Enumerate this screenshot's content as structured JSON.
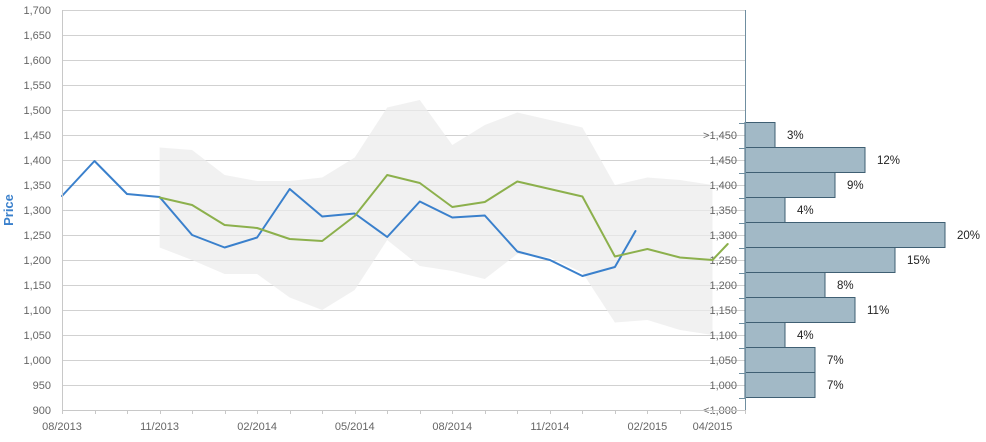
{
  "chart_data": {
    "type": "line",
    "ylabel": "Price",
    "ylim": [
      900,
      1700
    ],
    "y_ticks": [
      "900",
      "950",
      "1,000",
      "1,050",
      "1,100",
      "1,150",
      "1,200",
      "1,250",
      "1,300",
      "1,350",
      "1,400",
      "1,450",
      "1,500",
      "1,550",
      "1,600",
      "1,650",
      "1,700"
    ],
    "x_range": [
      "2013-08",
      "2015-05"
    ],
    "x_tick_labels": [
      "08/2013",
      "11/2013",
      "02/2014",
      "05/2014",
      "08/2014",
      "11/2014",
      "02/2015",
      "04/2015"
    ],
    "grid": "horizontal",
    "series": [
      {
        "color": "#3a80cc",
        "points": [
          [
            "2013-08",
            1328
          ],
          [
            "2013-09",
            1398
          ],
          [
            "2013-10",
            1332
          ],
          [
            "2013-11",
            1326
          ],
          [
            "2013-12",
            1250
          ],
          [
            "2014-01",
            1225
          ],
          [
            "2014-02",
            1245
          ],
          [
            "2014-03",
            1342
          ],
          [
            "2014-04",
            1287
          ],
          [
            "2014-05",
            1293
          ],
          [
            "2014-06",
            1246
          ],
          [
            "2014-07",
            1317
          ],
          [
            "2014-08",
            1285
          ],
          [
            "2014-09",
            1289
          ],
          [
            "2014-10",
            1217
          ],
          [
            "2014-11",
            1200
          ],
          [
            "2014-12",
            1168
          ],
          [
            "2015-01",
            1186
          ],
          [
            "2015-01-20",
            1258
          ]
        ]
      },
      {
        "color": "#8cb04c",
        "points": [
          [
            "2013-11",
            1325
          ],
          [
            "2013-12",
            1310
          ],
          [
            "2014-01",
            1270
          ],
          [
            "2014-02",
            1264
          ],
          [
            "2014-03",
            1242
          ],
          [
            "2014-04",
            1238
          ],
          [
            "2014-05",
            1288
          ],
          [
            "2014-06",
            1370
          ],
          [
            "2014-07",
            1354
          ],
          [
            "2014-08",
            1306
          ],
          [
            "2014-09",
            1316
          ],
          [
            "2014-10",
            1357
          ],
          [
            "2014-11",
            1342
          ],
          [
            "2014-12",
            1327
          ],
          [
            "2015-01",
            1207
          ],
          [
            "2015-02",
            1222
          ],
          [
            "2015-03",
            1205
          ],
          [
            "2015-04",
            1200
          ],
          [
            "2015-04-15",
            1232
          ]
        ]
      }
    ],
    "band": {
      "color": "#efefef",
      "upper": [
        [
          "2013-11",
          1425
        ],
        [
          "2013-12",
          1420
        ],
        [
          "2014-01",
          1370
        ],
        [
          "2014-02",
          1358
        ],
        [
          "2014-03",
          1358
        ],
        [
          "2014-04",
          1365
        ],
        [
          "2014-05",
          1405
        ],
        [
          "2014-06",
          1505
        ],
        [
          "2014-07",
          1520
        ],
        [
          "2014-08",
          1430
        ],
        [
          "2014-09",
          1470
        ],
        [
          "2014-10",
          1495
        ],
        [
          "2014-11",
          1480
        ],
        [
          "2014-12",
          1465
        ],
        [
          "2015-01",
          1350
        ],
        [
          "2015-02",
          1365
        ],
        [
          "2015-03",
          1360
        ],
        [
          "2015-04",
          1350
        ]
      ],
      "lower": [
        [
          "2013-11",
          1225
        ],
        [
          "2013-12",
          1200
        ],
        [
          "2014-01",
          1172
        ],
        [
          "2014-02",
          1172
        ],
        [
          "2014-03",
          1125
        ],
        [
          "2014-04",
          1100
        ],
        [
          "2014-05",
          1140
        ],
        [
          "2014-06",
          1240
        ],
        [
          "2014-07",
          1188
        ],
        [
          "2014-08",
          1178
        ],
        [
          "2014-09",
          1162
        ],
        [
          "2014-10",
          1212
        ],
        [
          "2014-11",
          1205
        ],
        [
          "2014-12",
          1175
        ],
        [
          "2015-01",
          1075
        ],
        [
          "2015-02",
          1080
        ],
        [
          "2015-03",
          1060
        ],
        [
          "2015-04",
          1050
        ]
      ]
    },
    "distribution": {
      "bar_color": "#a2b9c6",
      "bins": [
        {
          "label": ">1,450",
          "percent": 3,
          "text": "3%"
        },
        {
          "label": "1,450",
          "percent": 12,
          "text": "12%"
        },
        {
          "label": "1,400",
          "percent": 9,
          "text": "9%"
        },
        {
          "label": "1,350",
          "percent": 4,
          "text": "4%"
        },
        {
          "label": "1,300",
          "percent": 20,
          "text": "20%"
        },
        {
          "label": "1,250",
          "percent": 15,
          "text": "15%"
        },
        {
          "label": "1,200",
          "percent": 8,
          "text": "8%"
        },
        {
          "label": "1,150",
          "percent": 11,
          "text": "11%"
        },
        {
          "label": "1,100",
          "percent": 4,
          "text": "4%"
        },
        {
          "label": "1,050",
          "percent": 7,
          "text": "7%"
        },
        {
          "label": "1,000",
          "percent": 7,
          "text": "7%"
        },
        {
          "label": "<1,000",
          "percent": 0,
          "text": ""
        }
      ]
    }
  }
}
